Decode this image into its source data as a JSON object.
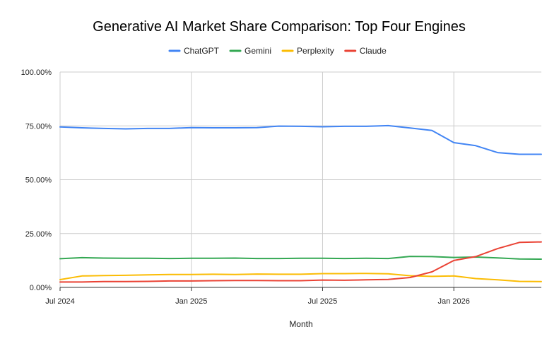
{
  "chart_data": {
    "type": "line",
    "title": "Generative AI Market Share Comparison: Top Four Engines",
    "xlabel": "Month",
    "ylabel": "",
    "legend_position": "top",
    "grid": true,
    "x_tick_labels": [
      "Jul 2024",
      "Jan 2025",
      "Jul 2025",
      "Jan 2026"
    ],
    "y_tick_labels": [
      "0.00%",
      "25.00%",
      "50.00%",
      "75.00%",
      "100.00%"
    ],
    "ylim": [
      0,
      100
    ],
    "x": [
      "2024-07",
      "2024-08",
      "2024-09",
      "2024-10",
      "2024-11",
      "2024-12",
      "2025-01",
      "2025-02",
      "2025-03",
      "2025-04",
      "2025-05",
      "2025-06",
      "2025-07",
      "2025-08",
      "2025-09",
      "2025-10",
      "2025-11",
      "2025-12",
      "2026-01",
      "2026-02",
      "2026-03",
      "2026-04",
      "2026-05"
    ],
    "series": [
      {
        "name": "ChatGPT",
        "color": "#4285F4",
        "values": [
          74.5,
          74.1,
          73.8,
          73.6,
          73.8,
          73.8,
          74.2,
          74.1,
          74.1,
          74.2,
          74.9,
          74.8,
          74.6,
          74.8,
          74.8,
          75.1,
          74.0,
          72.9,
          67.2,
          65.8,
          62.6,
          61.8,
          61.8
        ]
      },
      {
        "name": "Gemini",
        "color": "#34A853",
        "values": [
          13.3,
          13.8,
          13.6,
          13.5,
          13.5,
          13.4,
          13.5,
          13.5,
          13.6,
          13.4,
          13.4,
          13.5,
          13.5,
          13.4,
          13.5,
          13.4,
          14.4,
          14.3,
          13.9,
          14.1,
          13.7,
          13.2,
          13.1
        ]
      },
      {
        "name": "Perplexity",
        "color": "#FBBC04",
        "values": [
          3.6,
          5.3,
          5.5,
          5.6,
          5.8,
          6.0,
          6.0,
          6.1,
          6.0,
          6.2,
          6.1,
          6.1,
          6.4,
          6.4,
          6.5,
          6.3,
          5.4,
          5.1,
          5.3,
          4.1,
          3.5,
          2.8,
          2.7
        ]
      },
      {
        "name": "Claude",
        "color": "#EA4335",
        "values": [
          2.5,
          2.5,
          2.7,
          2.7,
          2.8,
          3.0,
          3.0,
          3.1,
          3.2,
          3.2,
          3.1,
          3.1,
          3.4,
          3.3,
          3.5,
          3.7,
          4.6,
          7.2,
          12.5,
          14.3,
          18.0,
          20.9,
          21.1
        ]
      }
    ]
  }
}
